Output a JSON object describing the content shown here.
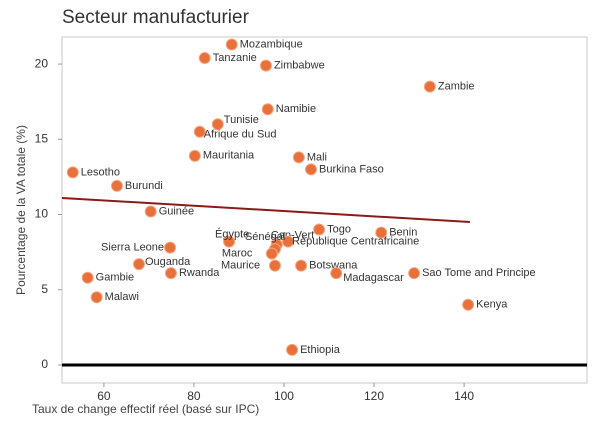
{
  "chart_data": {
    "type": "scatter",
    "title": "Secteur manufacturier",
    "xlabel": "Taux de change effectif réel (basé sur IPC)",
    "ylabel": "Pourcentage de la VA totale (%)",
    "color": "#e8703a",
    "labels": [
      "Mozambique",
      "Tanzanie",
      "Zimbabwe",
      "Zambie",
      "Namibie",
      "Tunisie",
      "Afrique du Sud",
      "Mauritania",
      "Mali",
      "Burkina Faso",
      "Lesotho",
      "Burundi",
      "Guinée",
      "Togo",
      "Benin",
      "Égypte",
      "Cap-Vert",
      "République Centrafricaine",
      "Sénégal",
      "Maroc",
      "Sierra Leone",
      "Ouganda",
      "Maurice",
      "Botswana",
      "Madagascar",
      "Rwanda",
      "Sao Tome and Principe",
      "Gambie",
      "Malawi",
      "Kenya",
      "Ethiopia"
    ],
    "x": [
      88.4,
      82.4,
      96.0,
      132.4,
      96.4,
      85.3,
      81.3,
      80.2,
      103.3,
      106.0,
      53.1,
      62.9,
      70.4,
      107.8,
      121.6,
      87.8,
      98.4,
      100.9,
      98.0,
      97.3,
      74.7,
      67.8,
      98.0,
      103.8,
      111.6,
      74.9,
      128.9,
      56.4,
      58.4,
      140.9,
      101.8
    ],
    "values": [
      21.3,
      20.4,
      19.9,
      18.5,
      17.0,
      16.0,
      15.5,
      13.9,
      13.8,
      13.0,
      12.8,
      11.9,
      10.2,
      9.0,
      8.8,
      8.2,
      8.0,
      8.2,
      7.7,
      7.4,
      7.8,
      6.7,
      6.6,
      6.6,
      6.1,
      6.1,
      6.1,
      5.8,
      4.5,
      4.0,
      1.0
    ],
    "trend_line": {
      "color": "#8b1a1a",
      "x": [
        50.7,
        141.3
      ],
      "y": [
        11.1,
        9.5
      ]
    },
    "xlim": [
      50.7,
      167.3
    ],
    "xticks": [
      60,
      80,
      100,
      120,
      140
    ],
    "ylim": [
      -1.2,
      21.8
    ],
    "yticks": [
      0,
      5,
      10,
      15,
      20
    ]
  }
}
